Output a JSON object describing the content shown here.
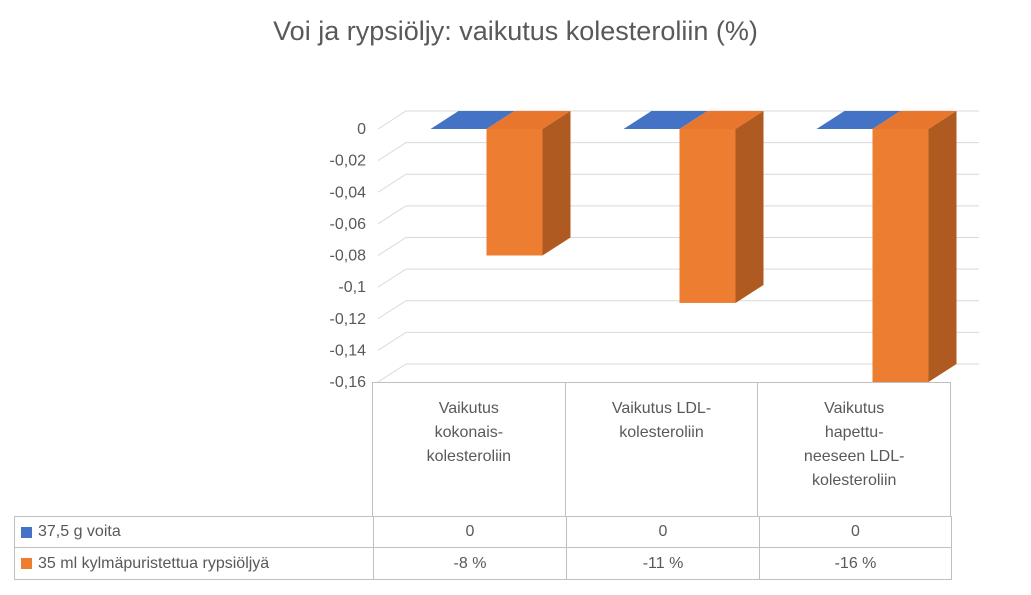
{
  "title": "Voi ja rypsiöljy: vaikutus kolesteroliin (%)",
  "chart_data": {
    "type": "bar",
    "style": "3d-column",
    "title": "Voi ja rypsiöljy: vaikutus kolesteroliin (%)",
    "xlabel": "",
    "ylabel": "",
    "ylim": [
      -0.16,
      0
    ],
    "grid": true,
    "legend_position": "bottom-data-table",
    "categories": [
      "Vaikutus kokonais-kolesteroliin",
      "Vaikutus LDL-kolesteroliin",
      "Vaikutus hapettuneeseen LDL-kolesteroliin"
    ],
    "category_label_lines": [
      [
        "Vaikutus",
        "kokonais-",
        "kolesteroliin"
      ],
      [
        "Vaikutus LDL-",
        "kolesteroliin"
      ],
      [
        "Vaikutus",
        "hapettu-",
        "neeseen LDL-",
        "kolesteroliin"
      ]
    ],
    "yticks": [
      "0",
      "-0,02",
      "-0,04",
      "-0,06",
      "-0,08",
      "-0,1",
      "-0,12",
      "-0,14",
      "-0,16"
    ],
    "ytick_values": [
      0,
      -0.02,
      -0.04,
      -0.06,
      -0.08,
      -0.1,
      -0.12,
      -0.14,
      -0.16
    ],
    "series": [
      {
        "name": "37,5 g voita",
        "color": "#4472C4",
        "color_top": "#4472C4",
        "color_side": "#2E5395",
        "values": [
          0,
          0,
          0
        ],
        "display_values": [
          "0",
          "0",
          "0"
        ]
      },
      {
        "name": "35 ml kylmäpuristettua rypsiöljyä",
        "color": "#ED7D31",
        "color_top": "#E8762C",
        "color_side": "#AE5A21",
        "values": [
          -0.08,
          -0.11,
          -0.16
        ],
        "display_values": [
          "-8 %",
          "-11 %",
          "-16 %"
        ]
      }
    ]
  },
  "colors": {
    "grid": "#D9D9D9",
    "axis_text": "#595959",
    "table_border": "#BFBFBF",
    "title_text": "#595959"
  }
}
